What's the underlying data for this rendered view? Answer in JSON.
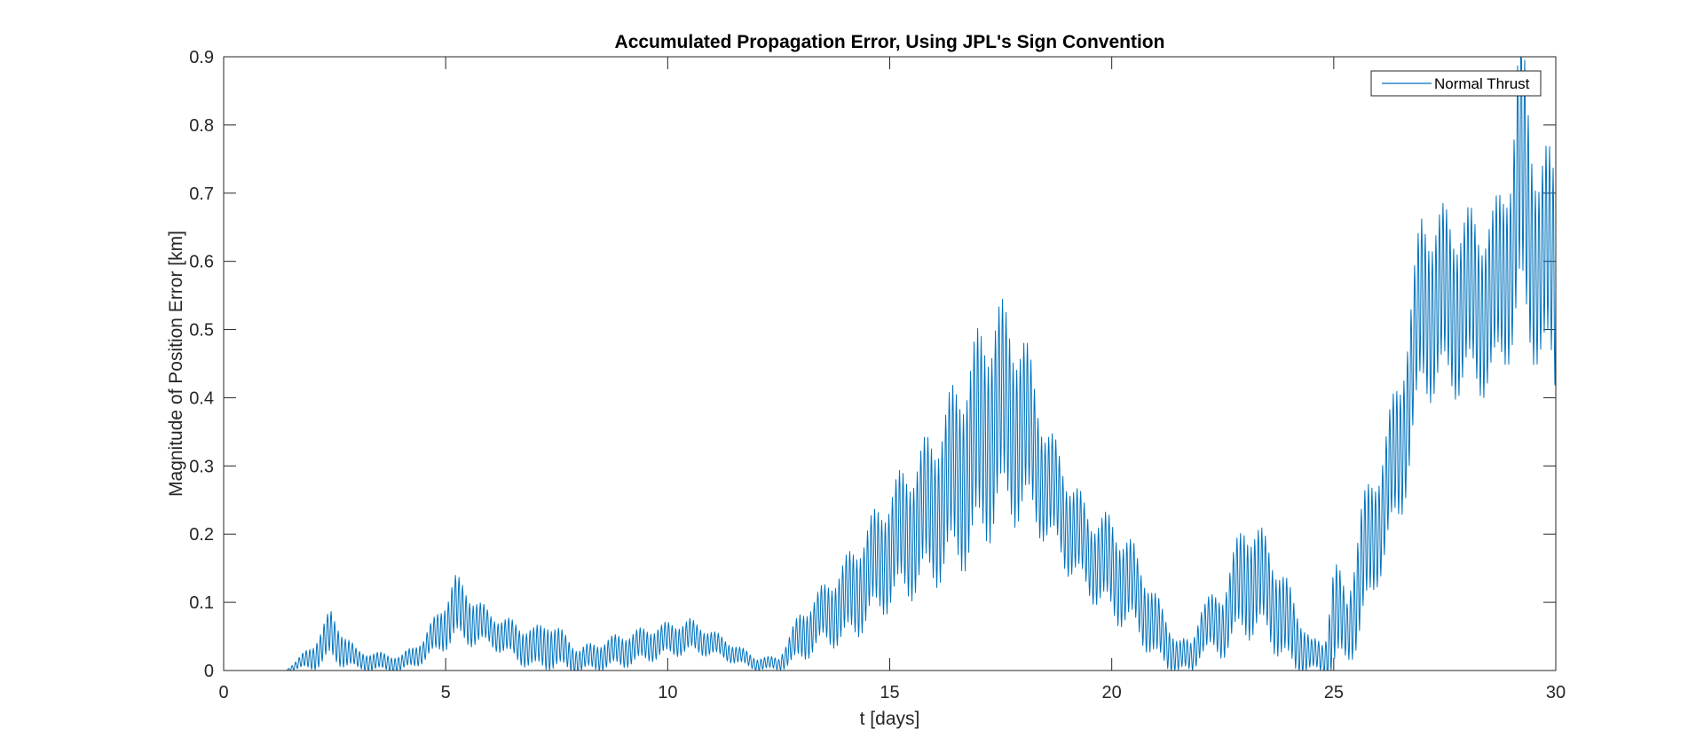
{
  "chart_data": {
    "type": "line",
    "title": "Accumulated Propagation Error, Using JPL's Sign Convention",
    "xlabel": "t [days]",
    "ylabel": "Magnitude of Position Error [km]",
    "xlim": [
      0,
      30
    ],
    "ylim": [
      0,
      0.9
    ],
    "xticks": [
      0,
      5,
      10,
      15,
      20,
      25,
      30
    ],
    "xtick_labels": [
      "0",
      "5",
      "10",
      "15",
      "20",
      "25",
      "30"
    ],
    "yticks": [
      0,
      0.1,
      0.2,
      0.3,
      0.4,
      0.5,
      0.6,
      0.7,
      0.8,
      0.9
    ],
    "ytick_labels": [
      "0",
      "0.1",
      "0.2",
      "0.3",
      "0.4",
      "0.5",
      "0.6",
      "0.7",
      "0.8",
      "0.9"
    ],
    "grid": false,
    "legend_position": "top-right",
    "series": [
      {
        "name": "Normal Thrust",
        "color": "#0072bd",
        "x": [
          0,
          1.4,
          2.0,
          2.4,
          3.0,
          4.0,
          4.5,
          5.0,
          5.2,
          6.0,
          7.0,
          7.3,
          8.0,
          9.0,
          10.0,
          10.5,
          11.0,
          12.0,
          12.5,
          13.0,
          13.5,
          14.0,
          15.0,
          16.0,
          17.0,
          17.4,
          18.0,
          18.5,
          19.0,
          19.5,
          20.0,
          20.5,
          21.0,
          21.5,
          21.8,
          22.0,
          22.5,
          23.0,
          23.5,
          24.0,
          24.5,
          24.8,
          25.0,
          25.3,
          25.6,
          26.0,
          26.5,
          27.0,
          28.0,
          28.6,
          29.0,
          29.2,
          29.6,
          30.0
        ],
        "mean": [
          0,
          0,
          0.02,
          0.05,
          0.015,
          0.01,
          0.03,
          0.07,
          0.09,
          0.06,
          0.03,
          0.04,
          0.015,
          0.03,
          0.045,
          0.05,
          0.04,
          0.01,
          0.01,
          0.05,
          0.08,
          0.1,
          0.18,
          0.24,
          0.33,
          0.38,
          0.36,
          0.28,
          0.22,
          0.17,
          0.15,
          0.12,
          0.06,
          0.02,
          0.02,
          0.06,
          0.07,
          0.14,
          0.12,
          0.06,
          0.02,
          0.02,
          0.08,
          0.06,
          0.14,
          0.22,
          0.33,
          0.54,
          0.54,
          0.54,
          0.62,
          0.72,
          0.6,
          0.58
        ],
        "amp": [
          0,
          0,
          0.015,
          0.03,
          0.012,
          0.01,
          0.015,
          0.03,
          0.04,
          0.02,
          0.025,
          0.03,
          0.015,
          0.02,
          0.02,
          0.02,
          0.015,
          0.008,
          0.008,
          0.03,
          0.035,
          0.05,
          0.07,
          0.09,
          0.13,
          0.13,
          0.11,
          0.07,
          0.06,
          0.05,
          0.06,
          0.05,
          0.04,
          0.02,
          0.02,
          0.03,
          0.04,
          0.07,
          0.06,
          0.05,
          0.02,
          0.02,
          0.07,
          0.04,
          0.08,
          0.07,
          0.09,
          0.11,
          0.105,
          0.105,
          0.12,
          0.18,
          0.12,
          0.15
        ],
        "oscillation_period_days": 0.08
      }
    ]
  }
}
